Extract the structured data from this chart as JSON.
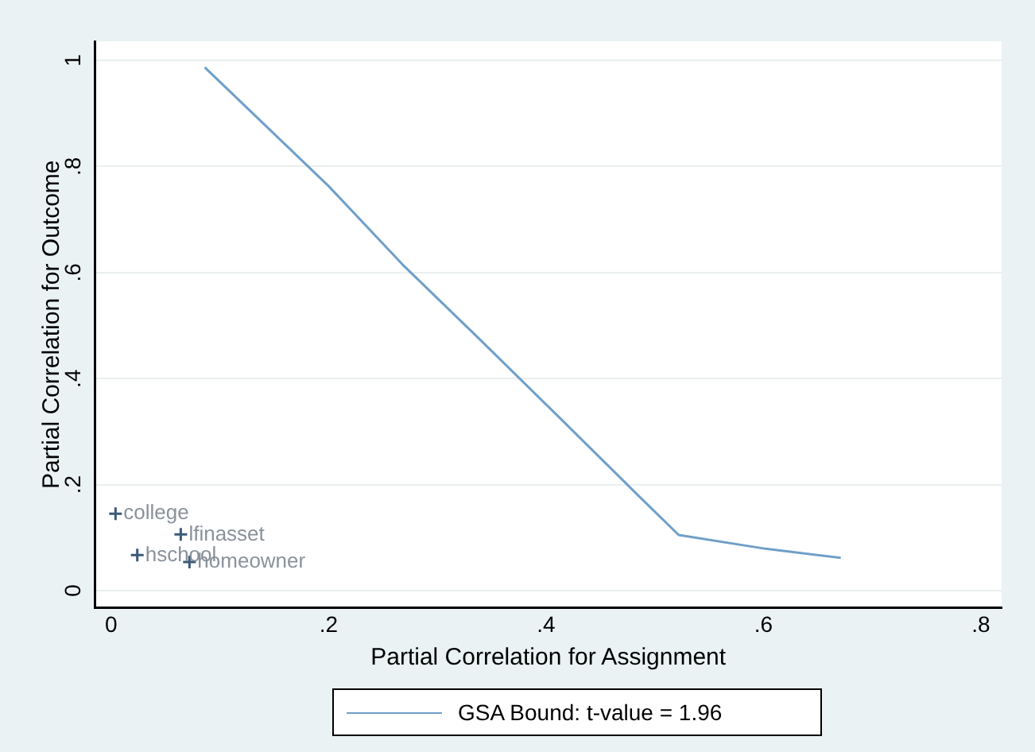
{
  "chart_data": {
    "type": "line",
    "xlabel": "Partial Correlation for Assignment",
    "ylabel": "Partial Correlation for Outcome",
    "x": [
      0.086,
      0.2,
      0.268,
      0.339,
      0.412,
      0.485,
      0.522,
      0.602,
      0.671
    ],
    "series": [
      {
        "name": "GSA Bound: t-value = 1.96",
        "color": "#6f9fc9",
        "values": [
          0.987,
          0.763,
          0.615,
          0.474,
          0.327,
          0.179,
          0.105,
          0.079,
          0.062
        ]
      },
      {
        "type": "scatter",
        "color": "#3b5a78",
        "x": [
          0.004,
          0.064,
          0.024,
          0.072
        ],
        "values": [
          0.145,
          0.106,
          0.067,
          0.054
        ],
        "marker": "cross"
      }
    ],
    "annotations": [
      {
        "text": "college",
        "x": 0.004,
        "y": 0.145
      },
      {
        "text": "lfinasset",
        "x": 0.064,
        "y": 0.106
      },
      {
        "text": "hschool",
        "x": 0.024,
        "y": 0.067
      },
      {
        "text": "homeowner",
        "x": 0.072,
        "y": 0.054
      }
    ],
    "xlim": [
      -0.015,
      0.819
    ],
    "xticks": [
      0,
      {
        "value": 0.2,
        "label": ".2"
      },
      {
        "value": 0.4,
        "label": ".4"
      },
      {
        "value": 0.6,
        "label": ".6"
      },
      {
        "value": 0.8,
        "label": ".8"
      }
    ],
    "ylim": [
      -0.032,
      1.036
    ],
    "yticks": [
      0,
      {
        "value": 0.2,
        "label": ".2"
      },
      {
        "value": 0.4,
        "label": ".4"
      },
      {
        "value": 0.6,
        "label": ".6"
      },
      {
        "value": 0.8,
        "label": ".8"
      },
      1
    ],
    "grid": "y",
    "legend": "bottom",
    "marker": "none"
  }
}
